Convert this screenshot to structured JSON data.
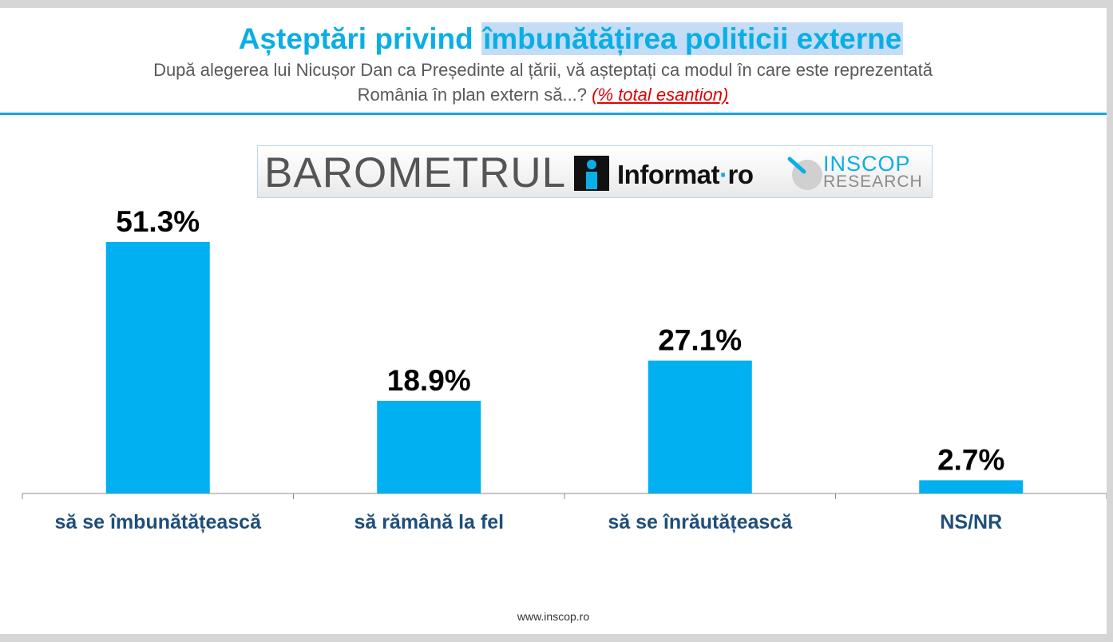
{
  "header": {
    "title_part1": "Așteptări privind ",
    "title_part2": "îmbunătățirea politicii externe",
    "subtitle_line1": "După alegerea lui Nicușor Dan ca Președinte al țării, vă așteptați ca modul în care este reprezentată",
    "subtitle_line2": "România în plan extern să...? ",
    "subtitle_note": "(% total esantion)"
  },
  "banner": {
    "barometer": "BAROMETRUL",
    "informat": "Informat",
    "informat_dot": "·",
    "informat_tld": "ro",
    "inscop_top": "INSCOP",
    "inscop_bottom": "RESEARCH"
  },
  "chart_data": {
    "type": "bar",
    "categories": [
      "să se îmbunătățească",
      "să rămână la fel",
      "să se înrăutățească",
      "NS/NR"
    ],
    "values": [
      51.3,
      18.9,
      27.1,
      2.7
    ],
    "value_labels": [
      "51.3%",
      "18.9%",
      "27.1%",
      "2.7%"
    ],
    "title": "",
    "xlabel": "",
    "ylabel": "",
    "ylim": [
      0,
      51.3
    ],
    "grid": false,
    "legend": "none",
    "bar_color": "#00b0f0",
    "label_color": "#1f4e79"
  },
  "footer": {
    "url": "www.inscop.ro"
  },
  "colors": {
    "accent": "#0aaee6",
    "highlight": "#c5dcf6",
    "note": "#e00000",
    "rule": "#1aa7e0"
  }
}
